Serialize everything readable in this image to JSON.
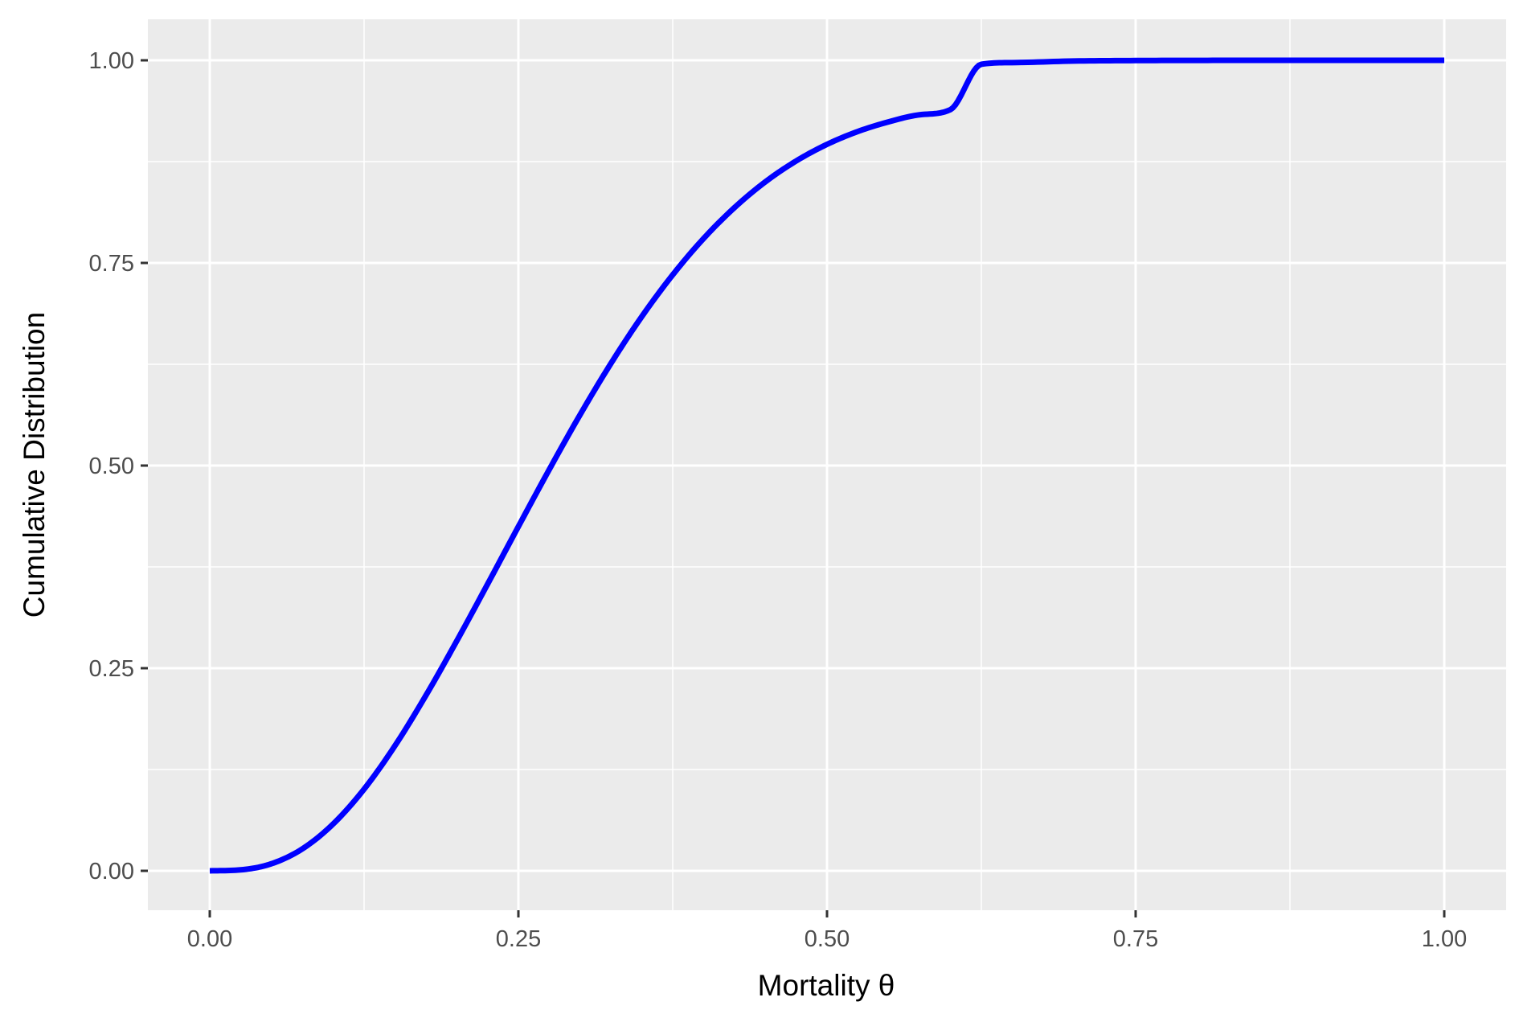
{
  "chart_data": {
    "type": "line",
    "xlabel": "Mortality θ",
    "ylabel": "Cumulative Distribution",
    "xlim": [
      0,
      1
    ],
    "ylim": [
      0,
      1
    ],
    "grid": true,
    "panel_background": "#ebebeb",
    "grid_color": "#ffffff",
    "line_color": "#0000ff",
    "x_ticks": [
      {
        "value": 0.0,
        "label": "0.00"
      },
      {
        "value": 0.25,
        "label": "0.25"
      },
      {
        "value": 0.5,
        "label": "0.50"
      },
      {
        "value": 0.75,
        "label": "0.75"
      },
      {
        "value": 1.0,
        "label": "1.00"
      }
    ],
    "y_ticks": [
      {
        "value": 0.0,
        "label": "0.00"
      },
      {
        "value": 0.25,
        "label": "0.25"
      },
      {
        "value": 0.5,
        "label": "0.50"
      },
      {
        "value": 0.75,
        "label": "0.75"
      },
      {
        "value": 1.0,
        "label": "1.00"
      }
    ],
    "series": [
      {
        "x": [
          0,
          0.025,
          0.05,
          0.075,
          0.1,
          0.125,
          0.15,
          0.175,
          0.2,
          0.225,
          0.25,
          0.275,
          0.3,
          0.325,
          0.35,
          0.375,
          0.4,
          0.425,
          0.45,
          0.475,
          0.5,
          0.525,
          0.55,
          0.575,
          0.6,
          0.625,
          0.65,
          0.7,
          0.75,
          0.8,
          0.85,
          0.9,
          0.95,
          1.0
        ],
        "y": [
          0,
          0.0012,
          0.0088,
          0.0271,
          0.0579,
          0.1008,
          0.1543,
          0.2162,
          0.2834,
          0.3536,
          0.4248,
          0.4951,
          0.5628,
          0.6261,
          0.6839,
          0.7353,
          0.7801,
          0.8182,
          0.85,
          0.8758,
          0.8963,
          0.9122,
          0.9241,
          0.9328,
          0.9392,
          0.9951,
          0.9972,
          0.9991,
          0.9997,
          0.9999,
          1.0,
          1.0,
          1.0,
          1.0
        ]
      }
    ]
  }
}
